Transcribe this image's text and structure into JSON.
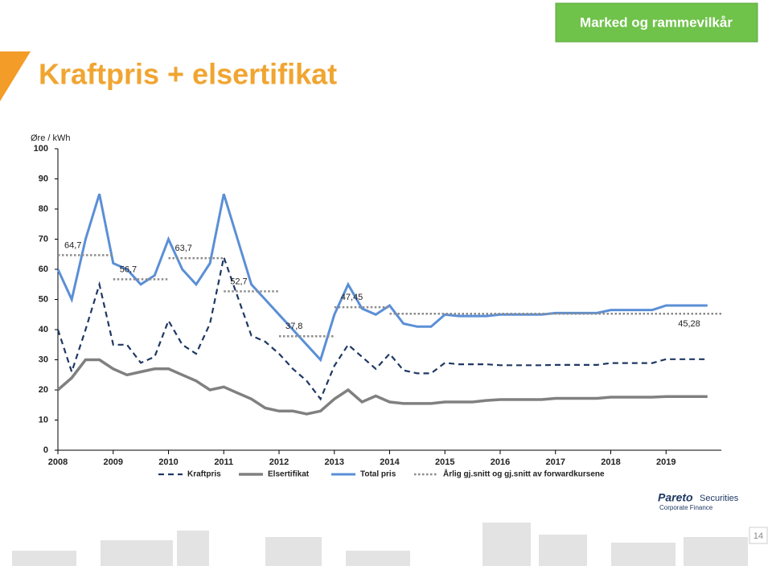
{
  "slide": {
    "button": "Marked og rammevilkår",
    "title": "Kraftpris + elsertifikat",
    "brand": "Pareto",
    "brand_suffix": "Securities",
    "brand_sub": "Corporate Finance",
    "page": "14"
  },
  "chart_data": {
    "type": "line",
    "y_label": "Øre / kWh",
    "x": [
      2008,
      2008.25,
      2008.5,
      2008.75,
      2009,
      2009.25,
      2009.5,
      2009.75,
      2010,
      2010.25,
      2010.5,
      2010.75,
      2011,
      2011.25,
      2011.5,
      2011.75,
      2012,
      2012.25,
      2012.5,
      2012.75,
      2013,
      2013.25,
      2013.5,
      2013.75,
      2014,
      2014.25,
      2014.5,
      2014.75,
      2015,
      2015.25,
      2015.5,
      2015.75,
      2016,
      2016.25,
      2016.5,
      2016.75,
      2017,
      2017.25,
      2017.5,
      2017.75,
      2018,
      2018.25,
      2018.5,
      2018.75,
      2019,
      2019.25,
      2019.5,
      2019.75
    ],
    "series": [
      {
        "name": "Kraftpris",
        "color": "#1f3864",
        "dash": "dashed",
        "width": 2.2,
        "values": [
          40,
          26,
          40,
          55,
          35,
          35,
          29,
          31,
          43,
          35,
          32,
          42,
          64,
          51,
          38,
          36,
          32,
          27,
          23,
          17,
          28,
          35,
          31,
          27,
          32,
          26.5,
          25.5,
          25.5,
          29,
          28.5,
          28.5,
          28.5,
          28.2,
          28.2,
          28.2,
          28.2,
          28.3,
          28.3,
          28.3,
          28.3,
          28.9,
          28.9,
          28.9,
          28.9,
          30.2,
          30.2,
          30.2,
          30.2
        ]
      },
      {
        "name": "Elsertifikat",
        "color": "#808080",
        "dash": "solid",
        "width": 3.5,
        "values": [
          20,
          24,
          30,
          30,
          27,
          25,
          26,
          27,
          27,
          25,
          23,
          20,
          21,
          19,
          17,
          14,
          13,
          13,
          12,
          13,
          17,
          20,
          16,
          18,
          16,
          15.5,
          15.5,
          15.5,
          16,
          16,
          16,
          16.5,
          16.8,
          16.8,
          16.8,
          16.8,
          17.2,
          17.2,
          17.2,
          17.2,
          17.6,
          17.6,
          17.6,
          17.6,
          17.8,
          17.8,
          17.8,
          17.8
        ]
      },
      {
        "name": "Total pris",
        "color": "#5b8fd6",
        "dash": "solid",
        "width": 3,
        "values": [
          60,
          50,
          70,
          85,
          62,
          60,
          55,
          58,
          70,
          60,
          55,
          62,
          85,
          70,
          55,
          50,
          45,
          40,
          35,
          30,
          45,
          55,
          47,
          45,
          48,
          42,
          41,
          41,
          45,
          44.5,
          44.5,
          44.5,
          45,
          45,
          45,
          45,
          45.5,
          45.5,
          45.5,
          45.5,
          46.5,
          46.5,
          46.5,
          46.5,
          48,
          48,
          48,
          48
        ]
      },
      {
        "name": "Årlig gj.snitt og gj.snitt av forwardkursene",
        "color": "#8c8c8c",
        "dash": "dotted",
        "width": 2.5,
        "step": true,
        "x": [
          2008,
          2009,
          2010,
          2011,
          2012,
          2013,
          2014
        ],
        "values": [
          64.7,
          56.7,
          63.7,
          52.7,
          37.8,
          47.45,
          45.28
        ],
        "value_labels": [
          "64,7",
          "56,7",
          "63,7",
          "52,7",
          "37,8",
          "47,45",
          "45,28"
        ]
      }
    ],
    "xlim": [
      2008,
      2020
    ],
    "xticks": [
      2008,
      2009,
      2010,
      2011,
      2012,
      2013,
      2014,
      2015,
      2016,
      2017,
      2018,
      2019
    ],
    "ylim": [
      0,
      100
    ],
    "yticks": [
      0,
      10,
      20,
      30,
      40,
      50,
      60,
      70,
      80,
      90,
      100
    ],
    "grid": false
  }
}
